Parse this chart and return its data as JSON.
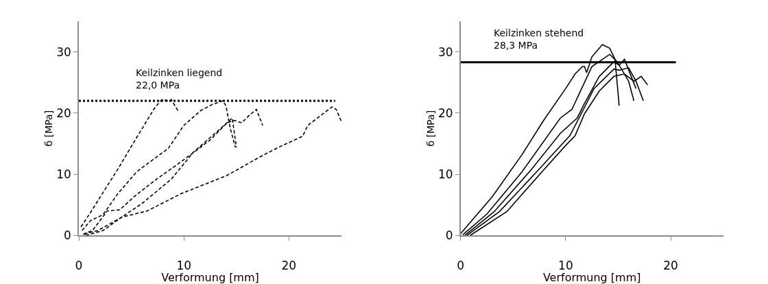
{
  "chart_data": [
    {
      "type": "line",
      "xlabel": "Verformung [mm]",
      "ylabel": "б [MPa]",
      "xlim": [
        0,
        25
      ],
      "ylim": [
        0,
        35
      ],
      "xticks": [
        0,
        10,
        20
      ],
      "yticks": [
        0,
        10,
        20,
        30
      ],
      "marker": "none",
      "annotations": [
        "Keilzinken liegend\n22,0 MPa"
      ],
      "series": [
        {
          "color": "#000000",
          "line_style": "dotted",
          "x": [
            0,
            24.4
          ],
          "values": [
            22.0,
            22.0
          ]
        },
        {
          "color": "#000000",
          "line_style": "dashed",
          "x": [
            0.2,
            0.9,
            3.7,
            5.5,
            7.2,
            7.9,
            8.6,
            8.8,
            9.5
          ],
          "values": [
            1.4,
            3.2,
            10.8,
            16,
            20.8,
            22.2,
            22,
            22.2,
            20.2
          ]
        },
        {
          "color": "#000000",
          "line_style": "dashed",
          "x": [
            0.3,
            1.1,
            2.3,
            3.7,
            5.5,
            8.5,
            10,
            11.6,
            12.7,
            13.7,
            14,
            14.4,
            14.9
          ],
          "values": [
            0.8,
            2.4,
            3.4,
            6.8,
            10.4,
            14.2,
            18,
            20.4,
            21.4,
            22,
            21.2,
            17.6,
            14.4
          ]
        },
        {
          "color": "#000000",
          "line_style": "dashed",
          "x": [
            0.4,
            1.3,
            2.7,
            3.9,
            5.3,
            7.4,
            9.7,
            12.5,
            14.1,
            14.8,
            15.5,
            16.2,
            16.9,
            17.5
          ],
          "values": [
            0.2,
            0.8,
            4,
            4.2,
            6.4,
            9.2,
            12,
            15.6,
            18.4,
            18.8,
            18.4,
            19.6,
            20.6,
            18
          ]
        },
        {
          "color": "#000000",
          "line_style": "dashed",
          "x": [
            0.5,
            1.8,
            3.9,
            6,
            8.8,
            10.9,
            12.5,
            14.1,
            14.6,
            15
          ],
          "values": [
            0.2,
            0.8,
            2.8,
            5.2,
            9.2,
            13.6,
            16,
            18.4,
            19.2,
            14.4
          ]
        },
        {
          "color": "#000000",
          "line_style": "dashed",
          "x": [
            0.65,
            2.3,
            4.1,
            6.5,
            9.7,
            14.1,
            17.2,
            19,
            21.3,
            21.8,
            24.1,
            24.5,
            25
          ],
          "values": [
            0,
            0.8,
            3,
            4,
            6.8,
            9.8,
            12.8,
            14.4,
            16.2,
            18,
            21,
            20.6,
            18.6
          ]
        }
      ]
    },
    {
      "type": "line",
      "xlabel": "Verformung [mm]",
      "ylabel": "б [MPa]",
      "xlim": [
        0,
        25
      ],
      "ylim": [
        0,
        35
      ],
      "xticks": [
        0,
        10,
        20
      ],
      "yticks": [
        0,
        10,
        20,
        30
      ],
      "marker": "none",
      "annotations": [
        "Keilzinken stehend\n28,3 MPa"
      ],
      "series": [
        {
          "color": "#000000",
          "line_style": "solid",
          "x": [
            0,
            20.5
          ],
          "values": [
            28.3,
            28.3
          ]
        },
        {
          "color": "#000000",
          "line_style": "solid",
          "x": [
            0,
            3,
            5.8,
            7.9,
            10,
            10.9,
            11.6,
            11.8,
            12,
            12.5,
            13.5,
            14.2,
            14.7,
            15.1
          ],
          "values": [
            0.3,
            6.3,
            13.1,
            18.8,
            24,
            26.4,
            27.6,
            27.6,
            26.6,
            29.2,
            31.2,
            30.6,
            28.8,
            21.2
          ]
        },
        {
          "color": "#000000",
          "line_style": "solid",
          "x": [
            0.2,
            2.5,
            5.8,
            9.5,
            10.6,
            11.3,
            12.5,
            14.2,
            14.9,
            16,
            16.5
          ],
          "values": [
            0.1,
            3.5,
            10.3,
            19.2,
            20.6,
            23.2,
            27.6,
            29.6,
            28.4,
            25.2,
            22
          ]
        },
        {
          "color": "#000000",
          "line_style": "solid",
          "x": [
            0.4,
            3.2,
            6.7,
            9.5,
            11.1,
            11.8,
            13.2,
            14.6,
            15.1,
            15.6,
            16.7
          ],
          "values": [
            0,
            3.9,
            10.7,
            16.7,
            19.2,
            21.6,
            26,
            28.4,
            27.8,
            28.8,
            24
          ]
        },
        {
          "color": "#000000",
          "line_style": "solid",
          "x": [
            0.6,
            3.7,
            7.4,
            10.4,
            11.4,
            12.7,
            14.6,
            15.1,
            16,
            16.7,
            17.4
          ],
          "values": [
            0,
            3.9,
            10.7,
            16.3,
            19.6,
            24,
            27.2,
            27,
            27.4,
            25.2,
            22
          ]
        },
        {
          "color": "#000000",
          "line_style": "solid",
          "x": [
            0.9,
            4.4,
            7.9,
            10,
            10.9,
            11.8,
            13.2,
            14.6,
            15.6,
            16.5,
            17.2,
            17.8
          ],
          "values": [
            0,
            3.9,
            10.7,
            14.7,
            16.3,
            19.9,
            23.6,
            26,
            26.4,
            25.2,
            26,
            24.6
          ]
        }
      ]
    }
  ]
}
